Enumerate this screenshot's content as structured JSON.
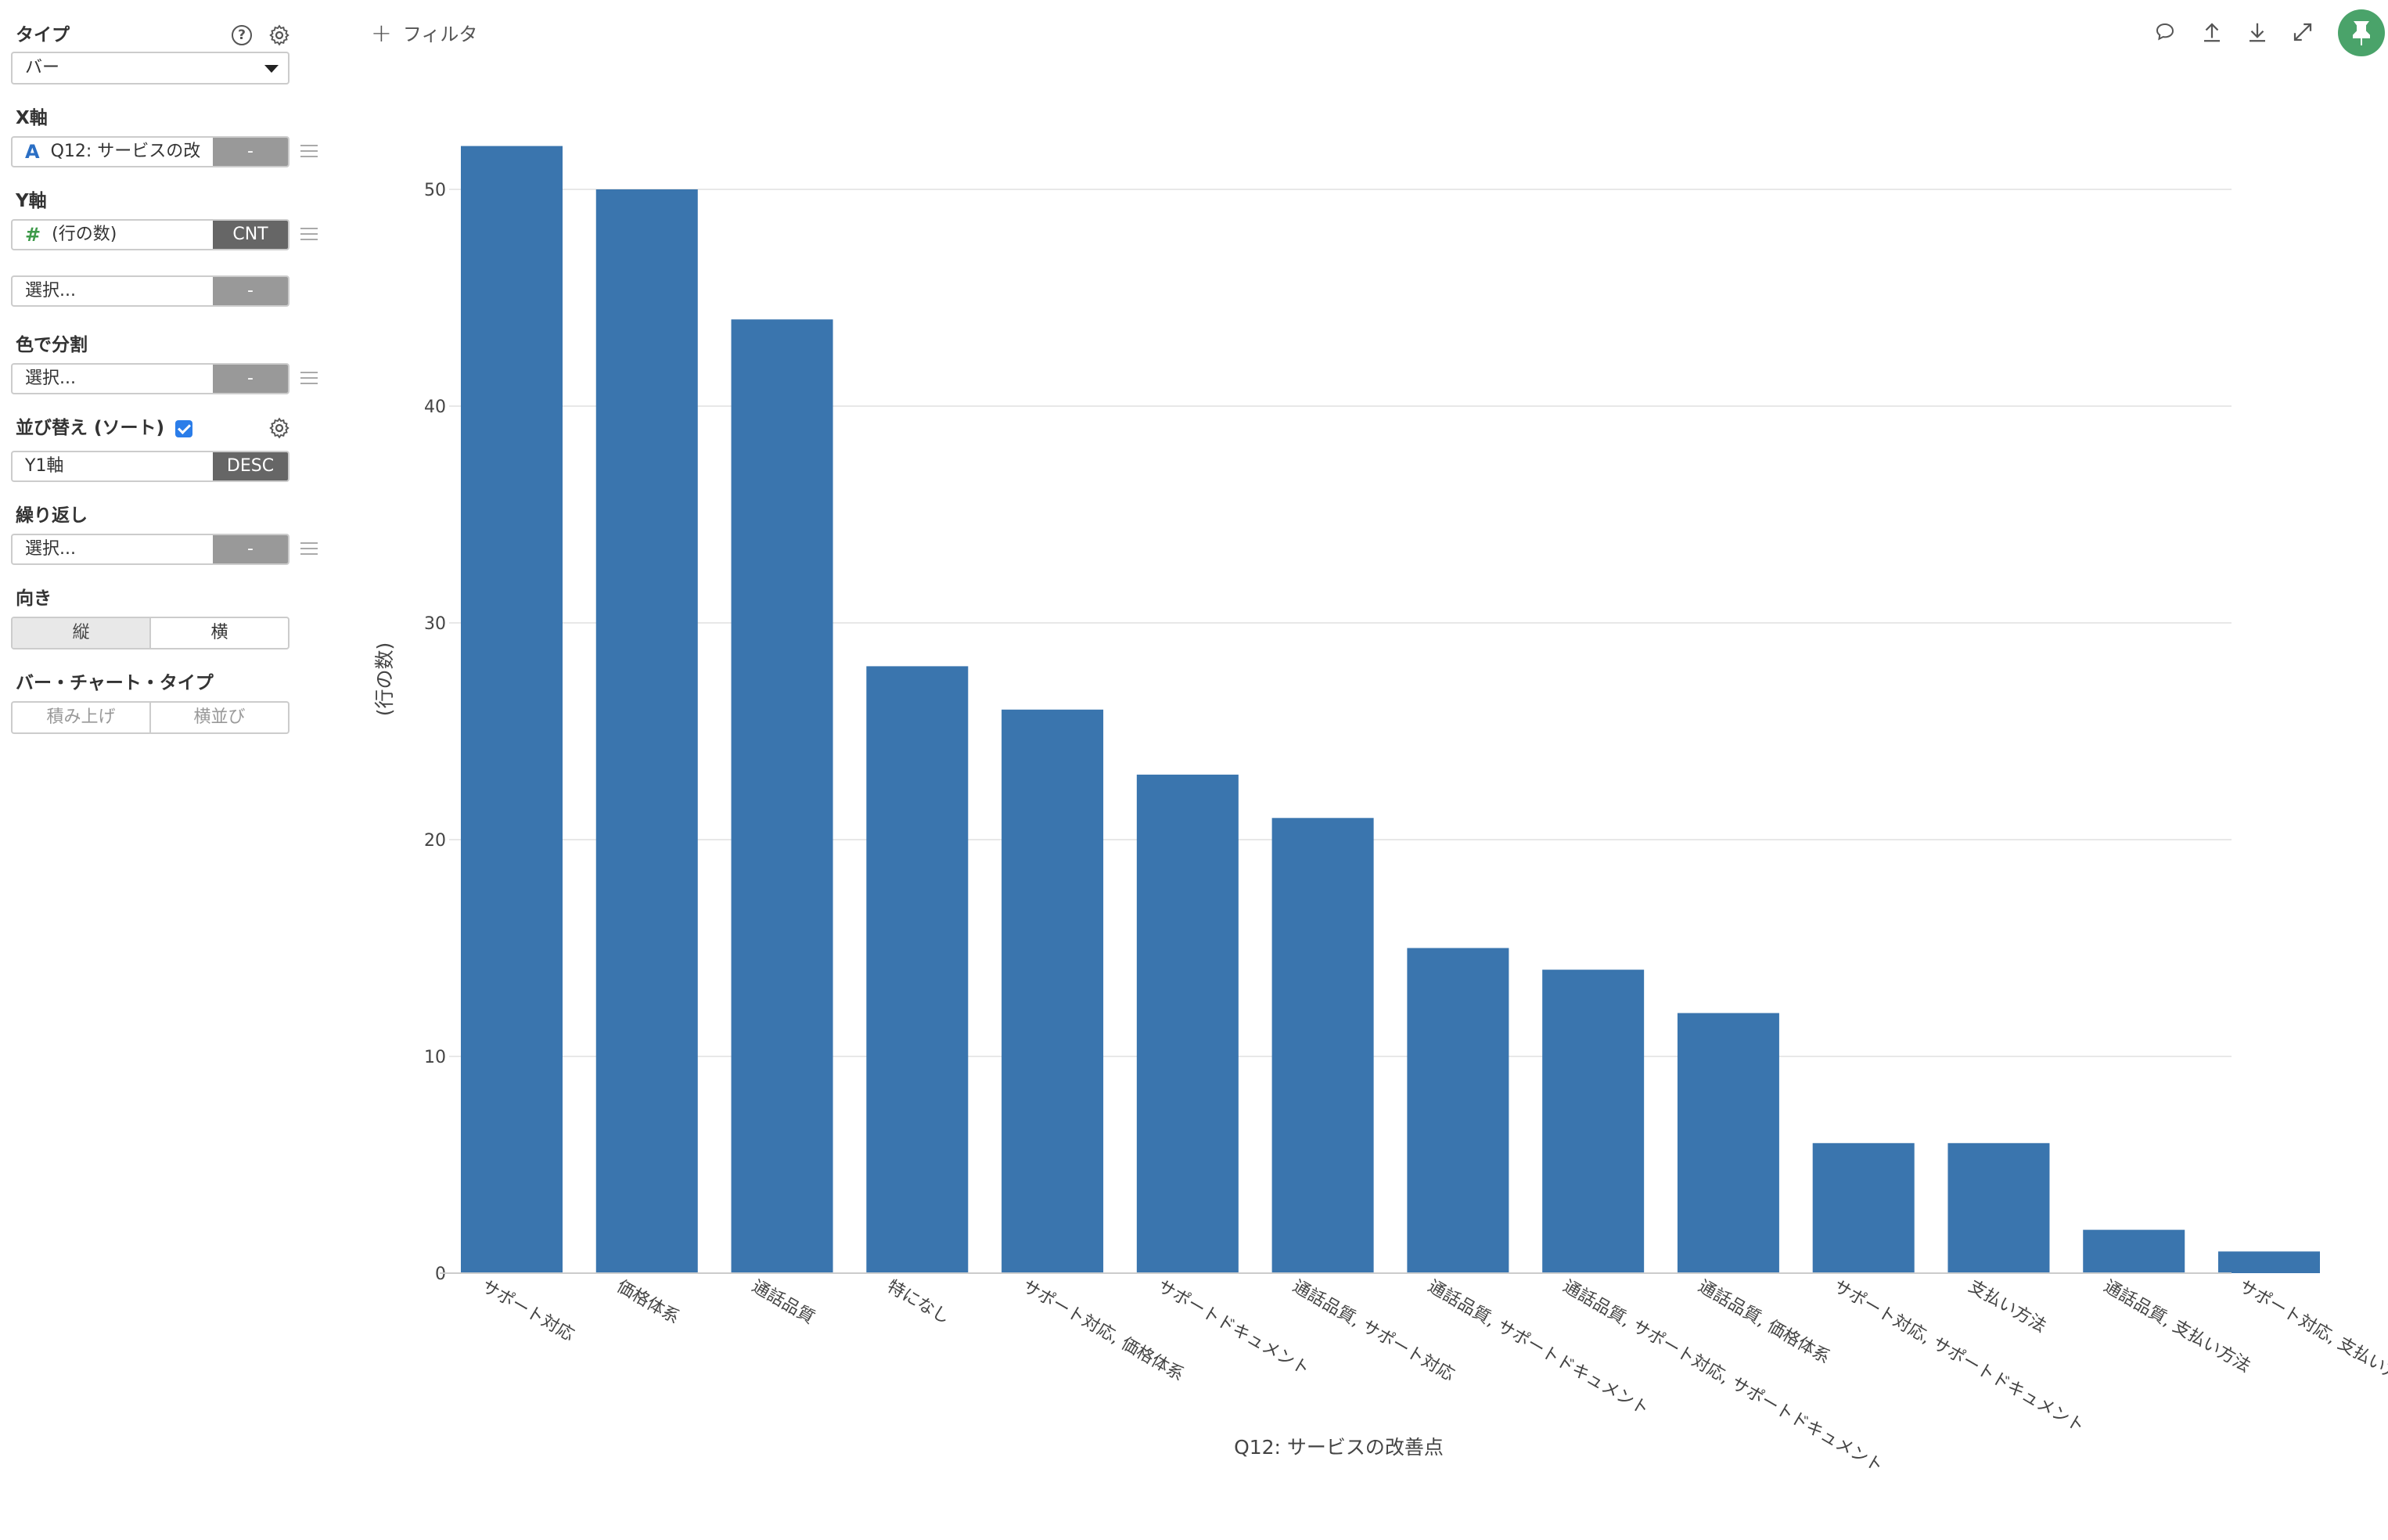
{
  "sidebar": {
    "type": {
      "label": "タイプ",
      "value": "バー"
    },
    "x_axis": {
      "label": "X軸",
      "type_tag": "A",
      "value": "Q12: サービスの改",
      "agg": "-"
    },
    "y_axis": {
      "label": "Y軸",
      "type_tag": "#",
      "value": "(行の数)",
      "agg": "CNT",
      "second_value": "選択...",
      "second_agg": "-"
    },
    "color_split": {
      "label": "色で分割",
      "value": "選択...",
      "agg": "-"
    },
    "sort": {
      "label": "並び替え (ソート)",
      "checked": true,
      "value": "Y1軸",
      "order": "DESC"
    },
    "repeat": {
      "label": "繰り返し",
      "value": "選択...",
      "agg": "-"
    },
    "orientation": {
      "label": "向き",
      "options": [
        "縦",
        "横"
      ],
      "selected": "縦"
    },
    "bar_type": {
      "label": "バー・チャート・タイプ",
      "options": [
        "積み上げ",
        "横並び"
      ]
    }
  },
  "toolbar": {
    "filter_label": "フィルタ"
  },
  "colors": {
    "bar": "#3a75ae",
    "accent": "#2b7de9",
    "pin": "#4aa36a"
  },
  "chart_data": {
    "type": "bar",
    "categories": [
      "サポート対応",
      "価格体系",
      "通話品質",
      "特になし",
      "サポート対応, 価格体系",
      "サポートドキュメント",
      "通話品質, サポート対応",
      "通話品質, サポートドキュメント",
      "通話品質, サポート対応, サポートドキュメント",
      "通話品質, 価格体系",
      "サポート対応, サポートドキュメント",
      "支払い方法",
      "通話品質, 支払い方法",
      "サポート対応, 支払い方法"
    ],
    "values": [
      52,
      50,
      44,
      28,
      26,
      23,
      21,
      15,
      14,
      12,
      6,
      6,
      2,
      1
    ],
    "xlabel": "Q12: サービスの改善点",
    "ylabel": "(行の数)",
    "ylim": [
      0,
      52
    ],
    "yticks": [
      0,
      10,
      20,
      30,
      40,
      50
    ],
    "grid": true
  }
}
